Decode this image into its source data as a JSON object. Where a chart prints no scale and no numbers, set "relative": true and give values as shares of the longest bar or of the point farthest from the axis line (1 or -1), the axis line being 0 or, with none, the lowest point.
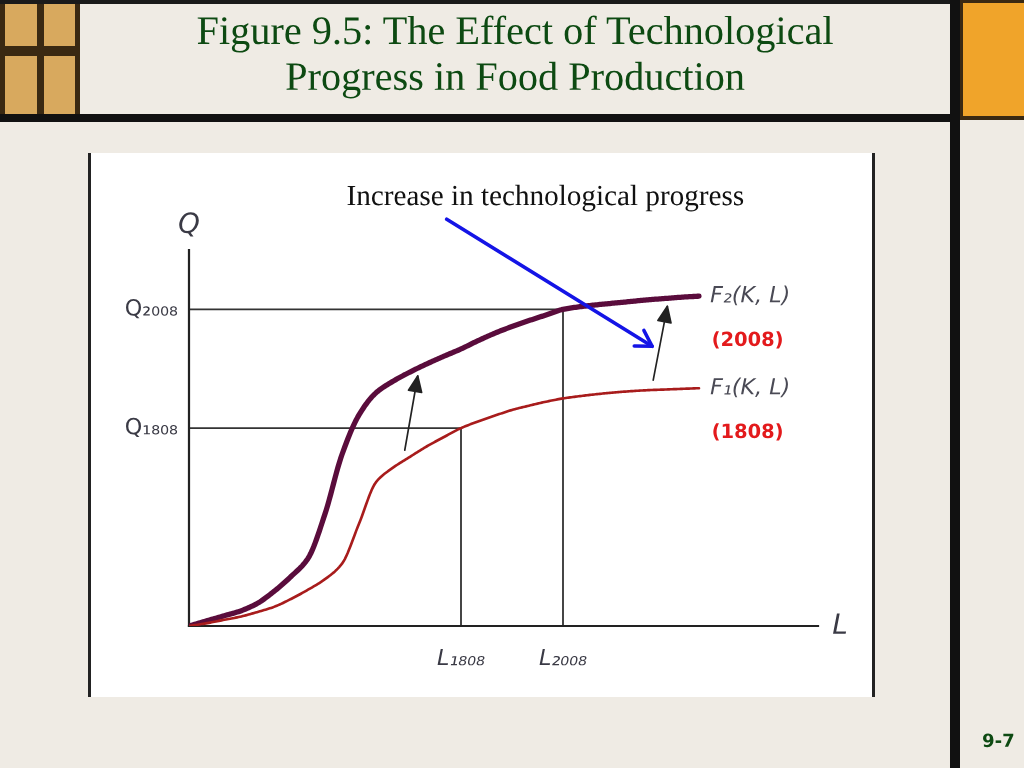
{
  "chart_data": {
    "type": "line",
    "title": "Figure 9.5: The Effect of Technological\nProgress in Food Production",
    "xlabel": "L",
    "ylabel": "Q",
    "relative": true,
    "categories": [
      null,
      null,
      null,
      null,
      null,
      null,
      null,
      null,
      null,
      null,
      null,
      null,
      null,
      null,
      null,
      null,
      "L₁₈₀₈",
      null,
      null,
      null,
      null,
      null,
      "L₂₀₀₈",
      null,
      null,
      null,
      null,
      null,
      null,
      null,
      null,
      null,
      null,
      null,
      null,
      null,
      null,
      null
    ],
    "series": [
      {
        "name": "F₂(K, L)",
        "color": "#5a0c3c",
        "values": [
          0,
          0.015,
          0.03,
          0.045,
          0.068,
          0.105,
          0.15,
          0.205,
          0.34,
          0.52,
          0.64,
          0.707,
          0.742,
          0.77,
          0.795,
          0.818,
          0.84,
          0.865,
          0.888,
          0.908,
          0.926,
          0.943,
          0.96,
          0.968,
          0.974,
          0.979,
          0.984,
          0.989,
          0.993,
          0.997,
          1.0,
          null,
          null,
          null,
          null,
          null,
          null,
          null
        ]
      },
      {
        "name": "F₁(K, L)",
        "color": "#a81c1c",
        "values": [
          0,
          0.008,
          0.018,
          0.028,
          0.042,
          0.058,
          0.082,
          0.11,
          0.142,
          0.189,
          0.31,
          0.436,
          0.48,
          0.513,
          0.545,
          0.573,
          0.6,
          0.62,
          0.638,
          0.655,
          0.668,
          0.68,
          0.69,
          0.697,
          0.703,
          0.708,
          0.712,
          0.715,
          0.717,
          0.719,
          0.721,
          null,
          null,
          null,
          null,
          null,
          null,
          null
        ]
      }
    ],
    "ref_lines": [
      {
        "axis": "y",
        "value": 0.96,
        "label": "Q₂₀₀₈",
        "color": "#333333"
      },
      {
        "axis": "y",
        "value": 0.6,
        "label": "Q₁₈₀₈",
        "color": "#333333"
      }
    ],
    "annotations": [
      "Increase in technological progress",
      "(2008)",
      "(1808)",
      "9-7"
    ]
  }
}
